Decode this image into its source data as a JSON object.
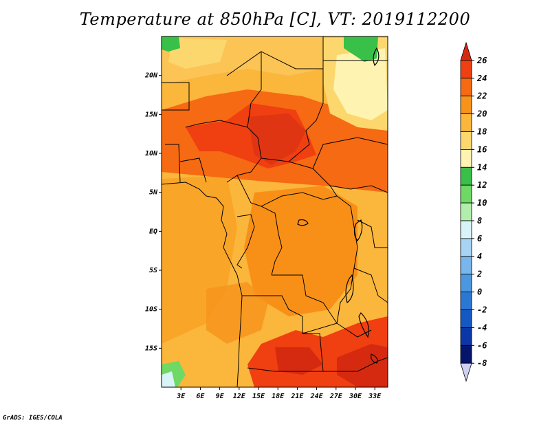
{
  "title": "Temperature at 850hPa [C], VT: 2019112200",
  "credit": "GrADS: IGES/COLA",
  "map": {
    "region": "Central Africa",
    "lat_ticks": [
      {
        "value": 20,
        "label": "20N"
      },
      {
        "value": 15,
        "label": "15N"
      },
      {
        "value": 10,
        "label": "10N"
      },
      {
        "value": 5,
        "label": "5N"
      },
      {
        "value": 0,
        "label": "EQ"
      },
      {
        "value": -5,
        "label": "5S"
      },
      {
        "value": -10,
        "label": "10S"
      },
      {
        "value": -15,
        "label": "15S"
      }
    ],
    "lon_ticks": [
      {
        "value": 3,
        "label": "3E"
      },
      {
        "value": 6,
        "label": "6E"
      },
      {
        "value": 9,
        "label": "9E"
      },
      {
        "value": 12,
        "label": "12E"
      },
      {
        "value": 15,
        "label": "15E"
      },
      {
        "value": 18,
        "label": "18E"
      },
      {
        "value": 21,
        "label": "21E"
      },
      {
        "value": 24,
        "label": "24E"
      },
      {
        "value": 27,
        "label": "27E"
      },
      {
        "value": 30,
        "label": "30E"
      },
      {
        "value": 33,
        "label": "33E"
      }
    ],
    "lon_range": [
      0,
      35
    ],
    "lat_range": [
      -20,
      25
    ]
  },
  "colorbar": {
    "levels": [
      26,
      24,
      22,
      20,
      18,
      16,
      14,
      12,
      10,
      8,
      6,
      4,
      2,
      0,
      -2,
      -4,
      -6,
      -8
    ],
    "labels": [
      "26",
      "24",
      "22",
      "20",
      "18",
      "16",
      "14",
      "12",
      "10",
      "8",
      "6",
      "4",
      "2",
      "0",
      "-2",
      "-4",
      "-6",
      "-8"
    ],
    "colors": [
      "#d62a10",
      "#f03f10",
      "#f56a12",
      "#f8931a",
      "#fbb63c",
      "#fcd76e",
      "#fef3b0",
      "#38c048",
      "#6ed964",
      "#b2eeab",
      "#d8f4f8",
      "#a8d4f4",
      "#78b6ec",
      "#4c98e0",
      "#2a78d4",
      "#1458c4",
      "#0a36a8",
      "#04156b",
      "#cfd0f2"
    ]
  }
}
